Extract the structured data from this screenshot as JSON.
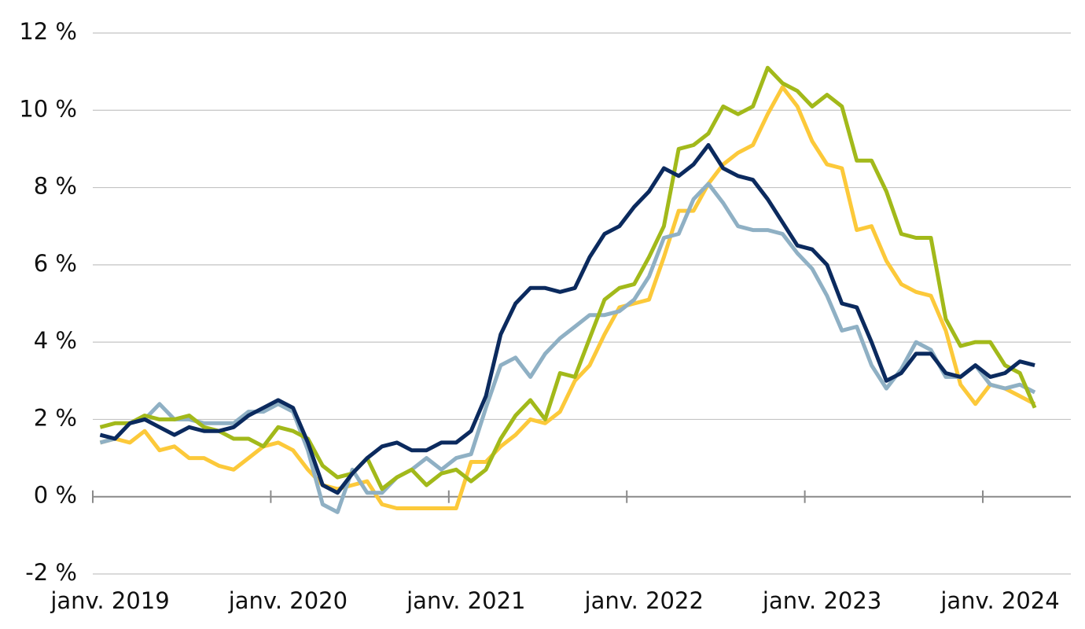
{
  "chart_data": {
    "type": "line",
    "categories": [
      "janv. 2019",
      null,
      null,
      null,
      null,
      null,
      null,
      null,
      null,
      null,
      null,
      null,
      "janv. 2020",
      null,
      null,
      null,
      null,
      null,
      null,
      null,
      null,
      null,
      null,
      null,
      "janv. 2021",
      null,
      null,
      null,
      null,
      null,
      null,
      null,
      null,
      null,
      null,
      null,
      "janv. 2022",
      null,
      null,
      null,
      null,
      null,
      null,
      null,
      null,
      null,
      null,
      null,
      "janv. 2023",
      null,
      null,
      null,
      null,
      null,
      null,
      null,
      null,
      null,
      null,
      null,
      "janv. 2024",
      null,
      null,
      null
    ],
    "series": [
      {
        "color": "#fcc93a",
        "values": [
          1.4,
          1.5,
          1.4,
          1.7,
          1.2,
          1.3,
          1.0,
          1.0,
          0.8,
          0.7,
          1.0,
          1.3,
          1.4,
          1.2,
          0.7,
          0.3,
          0.2,
          0.3,
          0.4,
          -0.2,
          -0.3,
          -0.3,
          -0.3,
          -0.3,
          -0.3,
          0.9,
          0.9,
          1.3,
          1.6,
          2.0,
          1.9,
          2.2,
          3.0,
          3.4,
          4.2,
          4.9,
          5.0,
          5.1,
          6.2,
          7.4,
          7.4,
          8.1,
          8.6,
          8.9,
          9.1,
          9.9,
          10.6,
          10.1,
          9.2,
          8.6,
          8.5,
          6.9,
          7.0,
          6.1,
          5.5,
          5.3,
          5.2,
          4.3,
          2.9,
          2.4,
          2.9,
          2.8,
          2.6,
          2.4
        ]
      },
      {
        "color": "#8fb0c4",
        "values": [
          1.4,
          1.5,
          1.9,
          2.0,
          2.4,
          2.0,
          2.0,
          1.9,
          1.9,
          1.9,
          2.2,
          2.2,
          2.4,
          2.2,
          1.2,
          -0.2,
          -0.4,
          0.7,
          0.1,
          0.1,
          0.5,
          0.7,
          1.0,
          0.7,
          1.0,
          1.1,
          2.3,
          3.4,
          3.6,
          3.1,
          3.7,
          4.1,
          4.4,
          4.7,
          4.7,
          4.8,
          5.1,
          5.7,
          6.7,
          6.8,
          7.7,
          8.1,
          7.6,
          7.0,
          6.9,
          6.9,
          6.8,
          6.3,
          5.9,
          5.2,
          4.3,
          4.4,
          3.4,
          2.8,
          3.3,
          4.0,
          3.8,
          3.1,
          3.1,
          3.4,
          2.9,
          2.8,
          2.9,
          2.7
        ]
      },
      {
        "color": "#a2b91a",
        "values": [
          1.8,
          1.9,
          1.9,
          2.1,
          2.0,
          2.0,
          2.1,
          1.8,
          1.7,
          1.5,
          1.5,
          1.3,
          1.8,
          1.7,
          1.5,
          0.8,
          0.5,
          0.6,
          1.0,
          0.2,
          0.5,
          0.7,
          0.3,
          0.6,
          0.7,
          0.4,
          0.7,
          1.5,
          2.1,
          2.5,
          2.0,
          3.2,
          3.1,
          4.1,
          5.1,
          5.4,
          5.5,
          6.2,
          7.0,
          9.0,
          9.1,
          9.4,
          10.1,
          9.9,
          10.1,
          11.1,
          10.7,
          10.5,
          10.1,
          10.4,
          10.1,
          8.7,
          8.7,
          7.9,
          6.8,
          6.7,
          6.7,
          4.6,
          3.9,
          4.0,
          4.0,
          3.4,
          3.2,
          2.3
        ]
      },
      {
        "color": "#0b2a5e",
        "values": [
          1.6,
          1.5,
          1.9,
          2.0,
          1.8,
          1.6,
          1.8,
          1.7,
          1.7,
          1.8,
          2.1,
          2.3,
          2.5,
          2.3,
          1.4,
          0.3,
          0.1,
          0.6,
          1.0,
          1.3,
          1.4,
          1.2,
          1.2,
          1.4,
          1.4,
          1.7,
          2.6,
          4.2,
          5.0,
          5.4,
          5.4,
          5.3,
          5.4,
          6.2,
          6.8,
          7.0,
          7.5,
          7.9,
          8.5,
          8.3,
          8.6,
          9.1,
          8.5,
          8.3,
          8.2,
          7.7,
          7.1,
          6.5,
          6.4,
          6.0,
          5.0,
          4.9,
          4.0,
          3.0,
          3.2,
          3.7,
          3.7,
          3.2,
          3.1,
          3.4,
          3.1,
          3.2,
          3.5,
          3.4
        ]
      }
    ],
    "ylim": [
      -2,
      12
    ],
    "yticks": [
      {
        "value": -2,
        "label": "-2 %"
      },
      {
        "value": 0,
        "label": "0 %"
      },
      {
        "value": 2,
        "label": "2 %"
      },
      {
        "value": 4,
        "label": "4 %"
      },
      {
        "value": 6,
        "label": "6 %"
      },
      {
        "value": 8,
        "label": "8 %"
      },
      {
        "value": 10,
        "label": "10 %"
      },
      {
        "value": 12,
        "label": "12 %"
      }
    ],
    "grid": true
  }
}
